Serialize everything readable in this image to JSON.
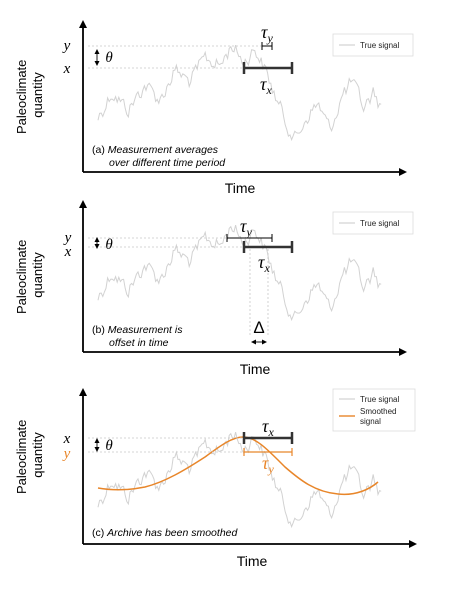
{
  "panels": [
    {
      "caption_prefix": "(a) ",
      "caption_line1": "Measurement averages",
      "caption_line2": "over different time period",
      "ylabel_line1": "Paleoclimate",
      "ylabel_line2": "quantity",
      "xlabel": "Time",
      "sym_y": "y",
      "sym_x": "x",
      "sym_theta": "θ",
      "sym_tau_y": "τ",
      "sym_tau_y_sub": "y",
      "sym_tau_x": "τ",
      "sym_tau_x_sub": "x",
      "legend_true": "True signal"
    },
    {
      "caption_prefix": "(b) ",
      "caption_line1": "Measurement is",
      "caption_line2": "offset in time",
      "ylabel_line1": "Paleoclimate",
      "ylabel_line2": "quantity",
      "xlabel": "Time",
      "sym_y": "y",
      "sym_x": "x",
      "sym_theta": "θ",
      "sym_tau_y": "τ",
      "sym_tau_y_sub": "y",
      "sym_tau_x": "τ",
      "sym_tau_x_sub": "x",
      "sym_delta": "Δ",
      "legend_true": "True signal"
    },
    {
      "caption_prefix": "(c) ",
      "caption_line1": "Archive has been smoothed",
      "ylabel_line1": "Paleoclimate",
      "ylabel_line2": "quantity",
      "xlabel": "Time",
      "sym_y": "y",
      "sym_x": "x",
      "sym_theta": "θ",
      "sym_tau_y": "τ",
      "sym_tau_y_sub": "y",
      "sym_tau_x": "τ",
      "sym_tau_x_sub": "x",
      "legend_true": "True signal",
      "legend_smooth_line1": "Smoothed",
      "legend_smooth_line2": "signal"
    }
  ],
  "colors": {
    "axis": "#000000",
    "true_signal": "#d2d2d2",
    "guide": "#c8c8c8",
    "orange": "#e8862a"
  }
}
